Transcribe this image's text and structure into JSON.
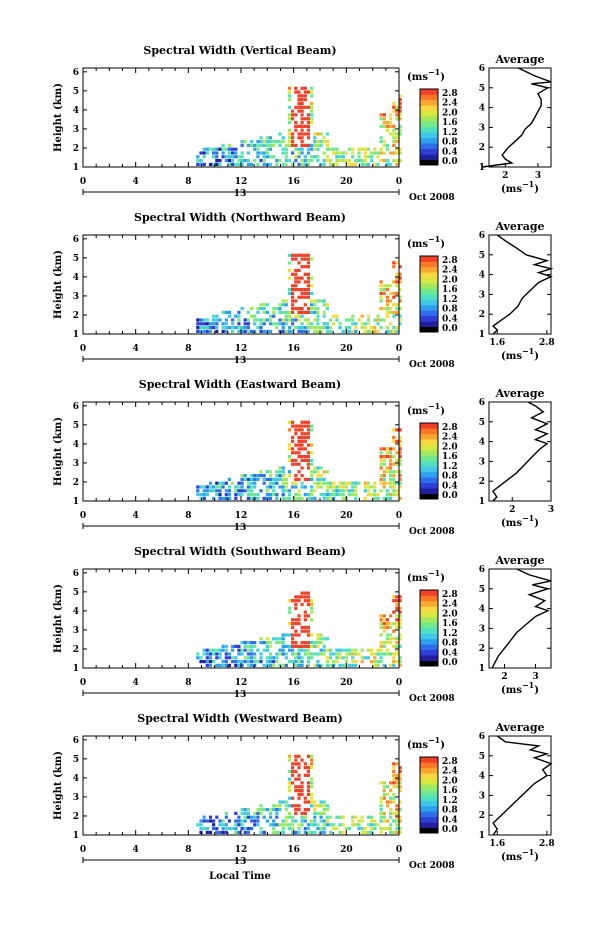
{
  "common": {
    "ylabel": "Height (km)",
    "xticks": [
      "0",
      "4",
      "8",
      "12",
      "16",
      "20",
      "0"
    ],
    "day_label": "13",
    "date_label": "Oct 2008",
    "unit_label": "(ms",
    "unit_exp": "−1",
    "avg_title": "Average",
    "avg_xlabel": "(ms",
    "avg_yticks": [
      "1",
      "2",
      "3",
      "4",
      "5",
      "6"
    ],
    "main_yticks": [
      "1",
      "2",
      "3",
      "4",
      "5",
      "6"
    ],
    "xlabel": "Local Time"
  },
  "colors": {
    "colormap": [
      "#000000",
      "#1f1f9f",
      "#2e3fd8",
      "#2f6ee8",
      "#2fa0f0",
      "#40c8e8",
      "#50e0c0",
      "#70e890",
      "#a0e860",
      "#d8e840",
      "#f8d840",
      "#f8a830",
      "#f87828",
      "#f04028"
    ]
  },
  "chart_data": [
    {
      "type": "heatmap",
      "title": "Spectral Width (Vertical Beam)",
      "colorbar_ticks": [
        "2.8",
        "2.4",
        "2.0",
        "1.6",
        "1.2",
        "0.8",
        "0.4",
        "0.0"
      ],
      "avg": {
        "xticks": [
          "2",
          "3"
        ],
        "xlim": [
          1.5,
          3.4
        ],
        "profile": [
          [
            1.3,
            1.0
          ],
          [
            2.2,
            1.2
          ],
          [
            2.0,
            1.4
          ],
          [
            1.9,
            1.6
          ],
          [
            2.0,
            1.8
          ],
          [
            2.1,
            2.0
          ],
          [
            2.3,
            2.3
          ],
          [
            2.5,
            2.6
          ],
          [
            2.6,
            2.9
          ],
          [
            2.8,
            3.2
          ],
          [
            2.9,
            3.5
          ],
          [
            3.0,
            3.8
          ],
          [
            3.1,
            4.1
          ],
          [
            3.1,
            4.4
          ],
          [
            3.0,
            4.7
          ],
          [
            3.3,
            5.0
          ],
          [
            2.8,
            5.2
          ],
          [
            3.4,
            5.3
          ],
          [
            2.9,
            5.6
          ],
          [
            2.4,
            6.0
          ]
        ]
      }
    },
    {
      "type": "heatmap",
      "title": "Spectral Width (Northward Beam)",
      "colorbar_ticks": [
        "2.8",
        "2.4",
        "2.0",
        "1.6",
        "1.2",
        "0.8",
        "0.4",
        "0.0"
      ],
      "avg": {
        "xticks": [
          "1.6",
          "2.8"
        ],
        "xlim": [
          1.4,
          2.9
        ],
        "profile": [
          [
            1.5,
            1.0
          ],
          [
            1.6,
            1.2
          ],
          [
            1.5,
            1.4
          ],
          [
            1.7,
            1.7
          ],
          [
            1.9,
            2.0
          ],
          [
            2.1,
            2.4
          ],
          [
            2.2,
            2.8
          ],
          [
            2.4,
            3.2
          ],
          [
            2.6,
            3.6
          ],
          [
            2.9,
            3.9
          ],
          [
            2.6,
            4.1
          ],
          [
            2.9,
            4.3
          ],
          [
            2.5,
            4.5
          ],
          [
            2.8,
            4.7
          ],
          [
            2.3,
            5.0
          ],
          [
            2.1,
            5.3
          ],
          [
            1.8,
            5.7
          ],
          [
            1.6,
            6.0
          ]
        ]
      }
    },
    {
      "type": "heatmap",
      "title": "Spectral Width (Eastward Beam)",
      "colorbar_ticks": [
        "2.8",
        "2.4",
        "2.0",
        "1.6",
        "1.2",
        "0.8",
        "0.4",
        "0.0"
      ],
      "avg": {
        "xticks": [
          "2",
          "3"
        ],
        "xlim": [
          1.4,
          3.0
        ],
        "profile": [
          [
            1.5,
            1.0
          ],
          [
            1.6,
            1.2
          ],
          [
            1.5,
            1.5
          ],
          [
            1.7,
            1.8
          ],
          [
            1.9,
            2.1
          ],
          [
            2.1,
            2.4
          ],
          [
            2.3,
            2.8
          ],
          [
            2.5,
            3.2
          ],
          [
            2.7,
            3.6
          ],
          [
            2.9,
            3.9
          ],
          [
            2.6,
            4.1
          ],
          [
            2.9,
            4.4
          ],
          [
            2.6,
            4.6
          ],
          [
            2.9,
            4.9
          ],
          [
            2.5,
            5.2
          ],
          [
            2.8,
            5.5
          ],
          [
            2.6,
            5.8
          ],
          [
            2.4,
            6.0
          ]
        ]
      }
    },
    {
      "type": "heatmap",
      "title": "Spectral Width (Southward Beam)",
      "colorbar_ticks": [
        "2.8",
        "2.4",
        "2.0",
        "1.6",
        "1.2",
        "0.8",
        "0.4",
        "0.0"
      ],
      "avg": {
        "xticks": [
          "2",
          "3"
        ],
        "xlim": [
          1.5,
          3.5
        ],
        "profile": [
          [
            1.6,
            1.0
          ],
          [
            1.7,
            1.3
          ],
          [
            1.8,
            1.6
          ],
          [
            2.0,
            2.0
          ],
          [
            2.2,
            2.4
          ],
          [
            2.4,
            2.8
          ],
          [
            2.7,
            3.2
          ],
          [
            3.0,
            3.6
          ],
          [
            3.4,
            3.9
          ],
          [
            3.0,
            4.1
          ],
          [
            3.3,
            4.4
          ],
          [
            2.8,
            4.7
          ],
          [
            3.4,
            5.0
          ],
          [
            2.9,
            5.2
          ],
          [
            3.5,
            5.4
          ],
          [
            2.8,
            5.7
          ],
          [
            2.4,
            6.0
          ]
        ]
      }
    },
    {
      "type": "heatmap",
      "title": "Spectral Width (Westward Beam)",
      "colorbar_ticks": [
        "2.8",
        "2.4",
        "2.0",
        "1.6",
        "1.2",
        "0.8",
        "0.4",
        "0.0"
      ],
      "avg": {
        "xticks": [
          "1.6",
          "2.8"
        ],
        "xlim": [
          1.4,
          2.9
        ],
        "profile": [
          [
            1.5,
            1.0
          ],
          [
            1.6,
            1.3
          ],
          [
            1.5,
            1.6
          ],
          [
            1.7,
            2.0
          ],
          [
            1.9,
            2.4
          ],
          [
            2.1,
            2.8
          ],
          [
            2.3,
            3.2
          ],
          [
            2.5,
            3.6
          ],
          [
            2.8,
            4.0
          ],
          [
            2.7,
            4.3
          ],
          [
            2.9,
            4.6
          ],
          [
            2.5,
            4.9
          ],
          [
            2.8,
            5.1
          ],
          [
            2.4,
            5.3
          ],
          [
            2.6,
            5.5
          ],
          [
            1.8,
            5.7
          ],
          [
            1.6,
            6.0
          ]
        ]
      }
    }
  ]
}
